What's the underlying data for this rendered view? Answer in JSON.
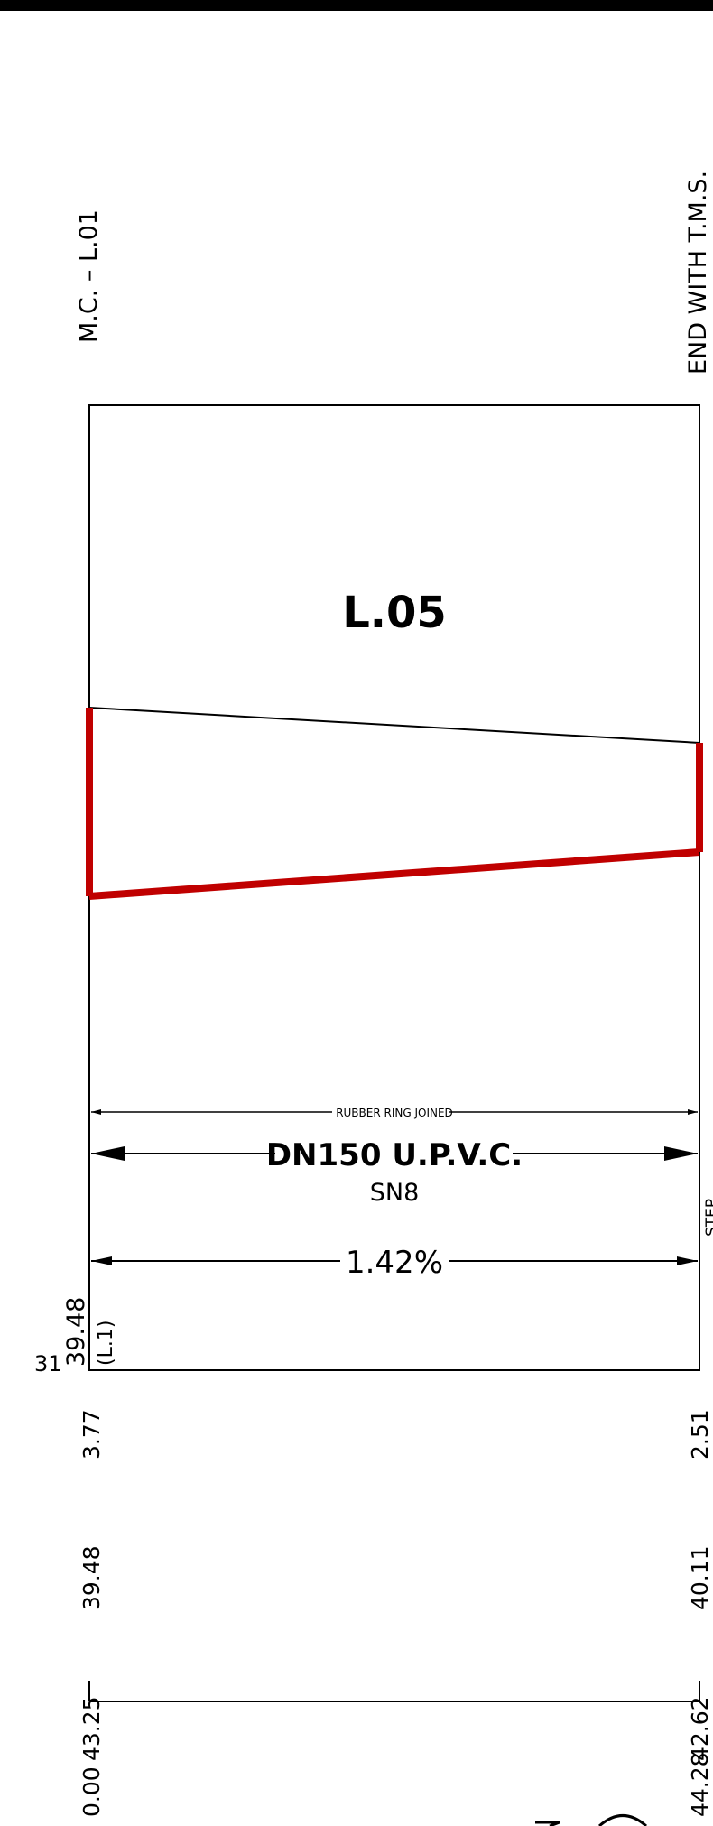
{
  "labels": {
    "start_node": "M.C. – L.01",
    "end_node": "END WITH T.M.S.",
    "section_id": "L.05",
    "joint_note": "RUBBER RING JOINED",
    "pipe_spec": "DN150 U.P.V.C.",
    "stiffness_class": "SN8",
    "gradient": "1.42%",
    "left_invert_level": "39.48",
    "left_invert_ref": "(L.1)",
    "left_edge_fragment": "31",
    "right_edge_fragment": "STEP .. .. .. .."
  },
  "left_column": {
    "depth": "3.77",
    "invert_level": "39.48",
    "ground_level": "43.25",
    "chainage": "0.00"
  },
  "right_column": {
    "depth": "2.51",
    "invert_level": "40.11",
    "ground_level": "42.62",
    "chainage": "44.28"
  },
  "colors": {
    "pipe_outline": "#c00000",
    "linework": "#000000",
    "background": "#ffffff"
  }
}
